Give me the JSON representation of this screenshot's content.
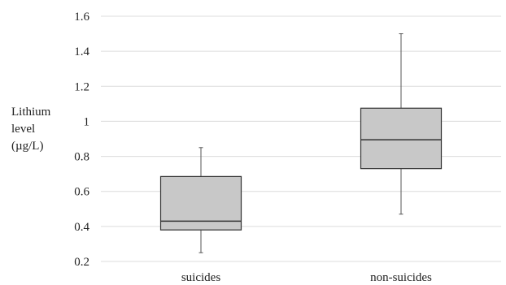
{
  "chart_data": {
    "type": "box",
    "ylabel_lines": [
      "Lithium",
      "level",
      "(µg/L)"
    ],
    "ylim": [
      0.2,
      1.6
    ],
    "yticks": [
      0.2,
      0.4,
      0.6,
      0.8,
      1,
      1.2,
      1.4,
      1.6
    ],
    "ytick_labels": [
      "0.2",
      "0.4",
      "0.6",
      "0.8",
      "1",
      "1.2",
      "1.4",
      "1.6"
    ],
    "grid": true,
    "categories": [
      "suicides",
      "non-suicides"
    ],
    "boxes": [
      {
        "category": "suicides",
        "min": 0.25,
        "q1": 0.38,
        "median": 0.43,
        "q3": 0.685,
        "max": 0.85
      },
      {
        "category": "non-suicides",
        "min": 0.47,
        "q1": 0.73,
        "median": 0.895,
        "q3": 1.075,
        "max": 1.5
      }
    ],
    "colors": {
      "box_fill": "#c8c8c8",
      "box_stroke": "#333333",
      "whisker": "#555555",
      "grid": "#dcdcdc"
    }
  }
}
